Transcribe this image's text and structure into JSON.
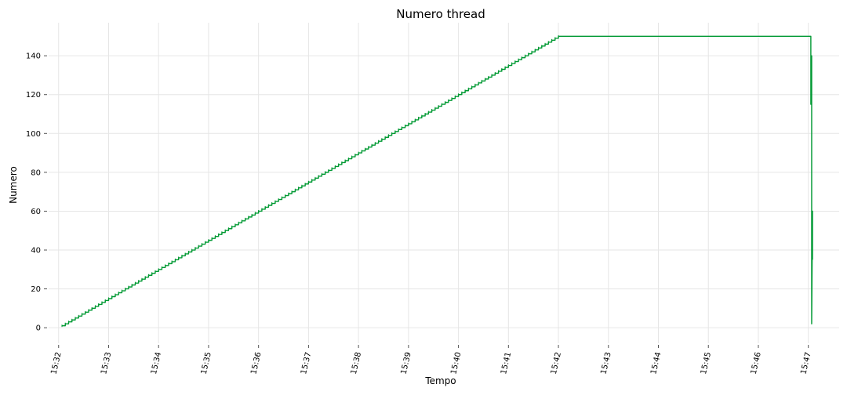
{
  "chart_data": {
    "type": "line",
    "title": "Numero thread",
    "xlabel": "Tempo",
    "ylabel": "Numero",
    "x_ticks": [
      "15:32",
      "15:33",
      "15:34",
      "15:35",
      "15:36",
      "15:37",
      "15:38",
      "15:39",
      "15:40",
      "15:41",
      "15:42",
      "15:43",
      "15:44",
      "15:45",
      "15:46",
      "15:47"
    ],
    "y_ticks": [
      0,
      20,
      40,
      60,
      80,
      100,
      120,
      140
    ],
    "xlim": [
      "15:31:48",
      "15:47:37"
    ],
    "ylim": [
      -8,
      157
    ],
    "grid": true,
    "series": [
      {
        "color": "#009933",
        "x": [
          "15:32:04",
          "15:42:00",
          "15:47:03",
          "15:47:03",
          "15:47:04",
          "15:47:04",
          "15:47:05",
          "15:47:05"
        ],
        "y": [
          1,
          150,
          150,
          115,
          140,
          2,
          60,
          35
        ]
      }
    ]
  }
}
